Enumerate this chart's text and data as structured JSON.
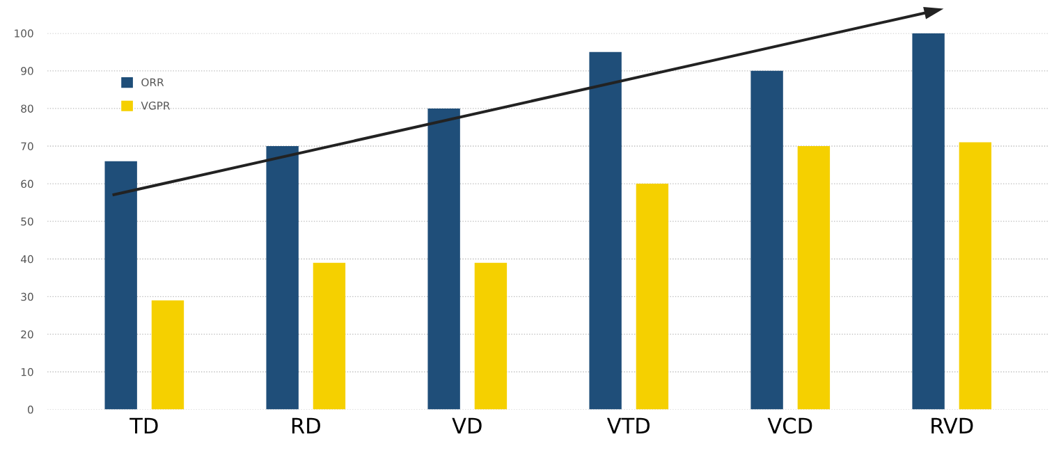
{
  "chart_data": {
    "type": "bar",
    "categories": [
      "TD",
      "RD",
      "VD",
      "VTD",
      "VCD",
      "RVD"
    ],
    "series": [
      {
        "name": "ORR",
        "color": "#1f4e79",
        "values": [
          66,
          70,
          80,
          95,
          90,
          100
        ]
      },
      {
        "name": "VGPR",
        "color": "#f5d000",
        "values": [
          29,
          39,
          39,
          60,
          70,
          71
        ]
      }
    ],
    "ylim": [
      0,
      100
    ],
    "yticks": [
      0,
      10,
      20,
      30,
      40,
      50,
      60,
      70,
      80,
      90,
      100
    ],
    "grid": "y",
    "legend": "top left"
  }
}
